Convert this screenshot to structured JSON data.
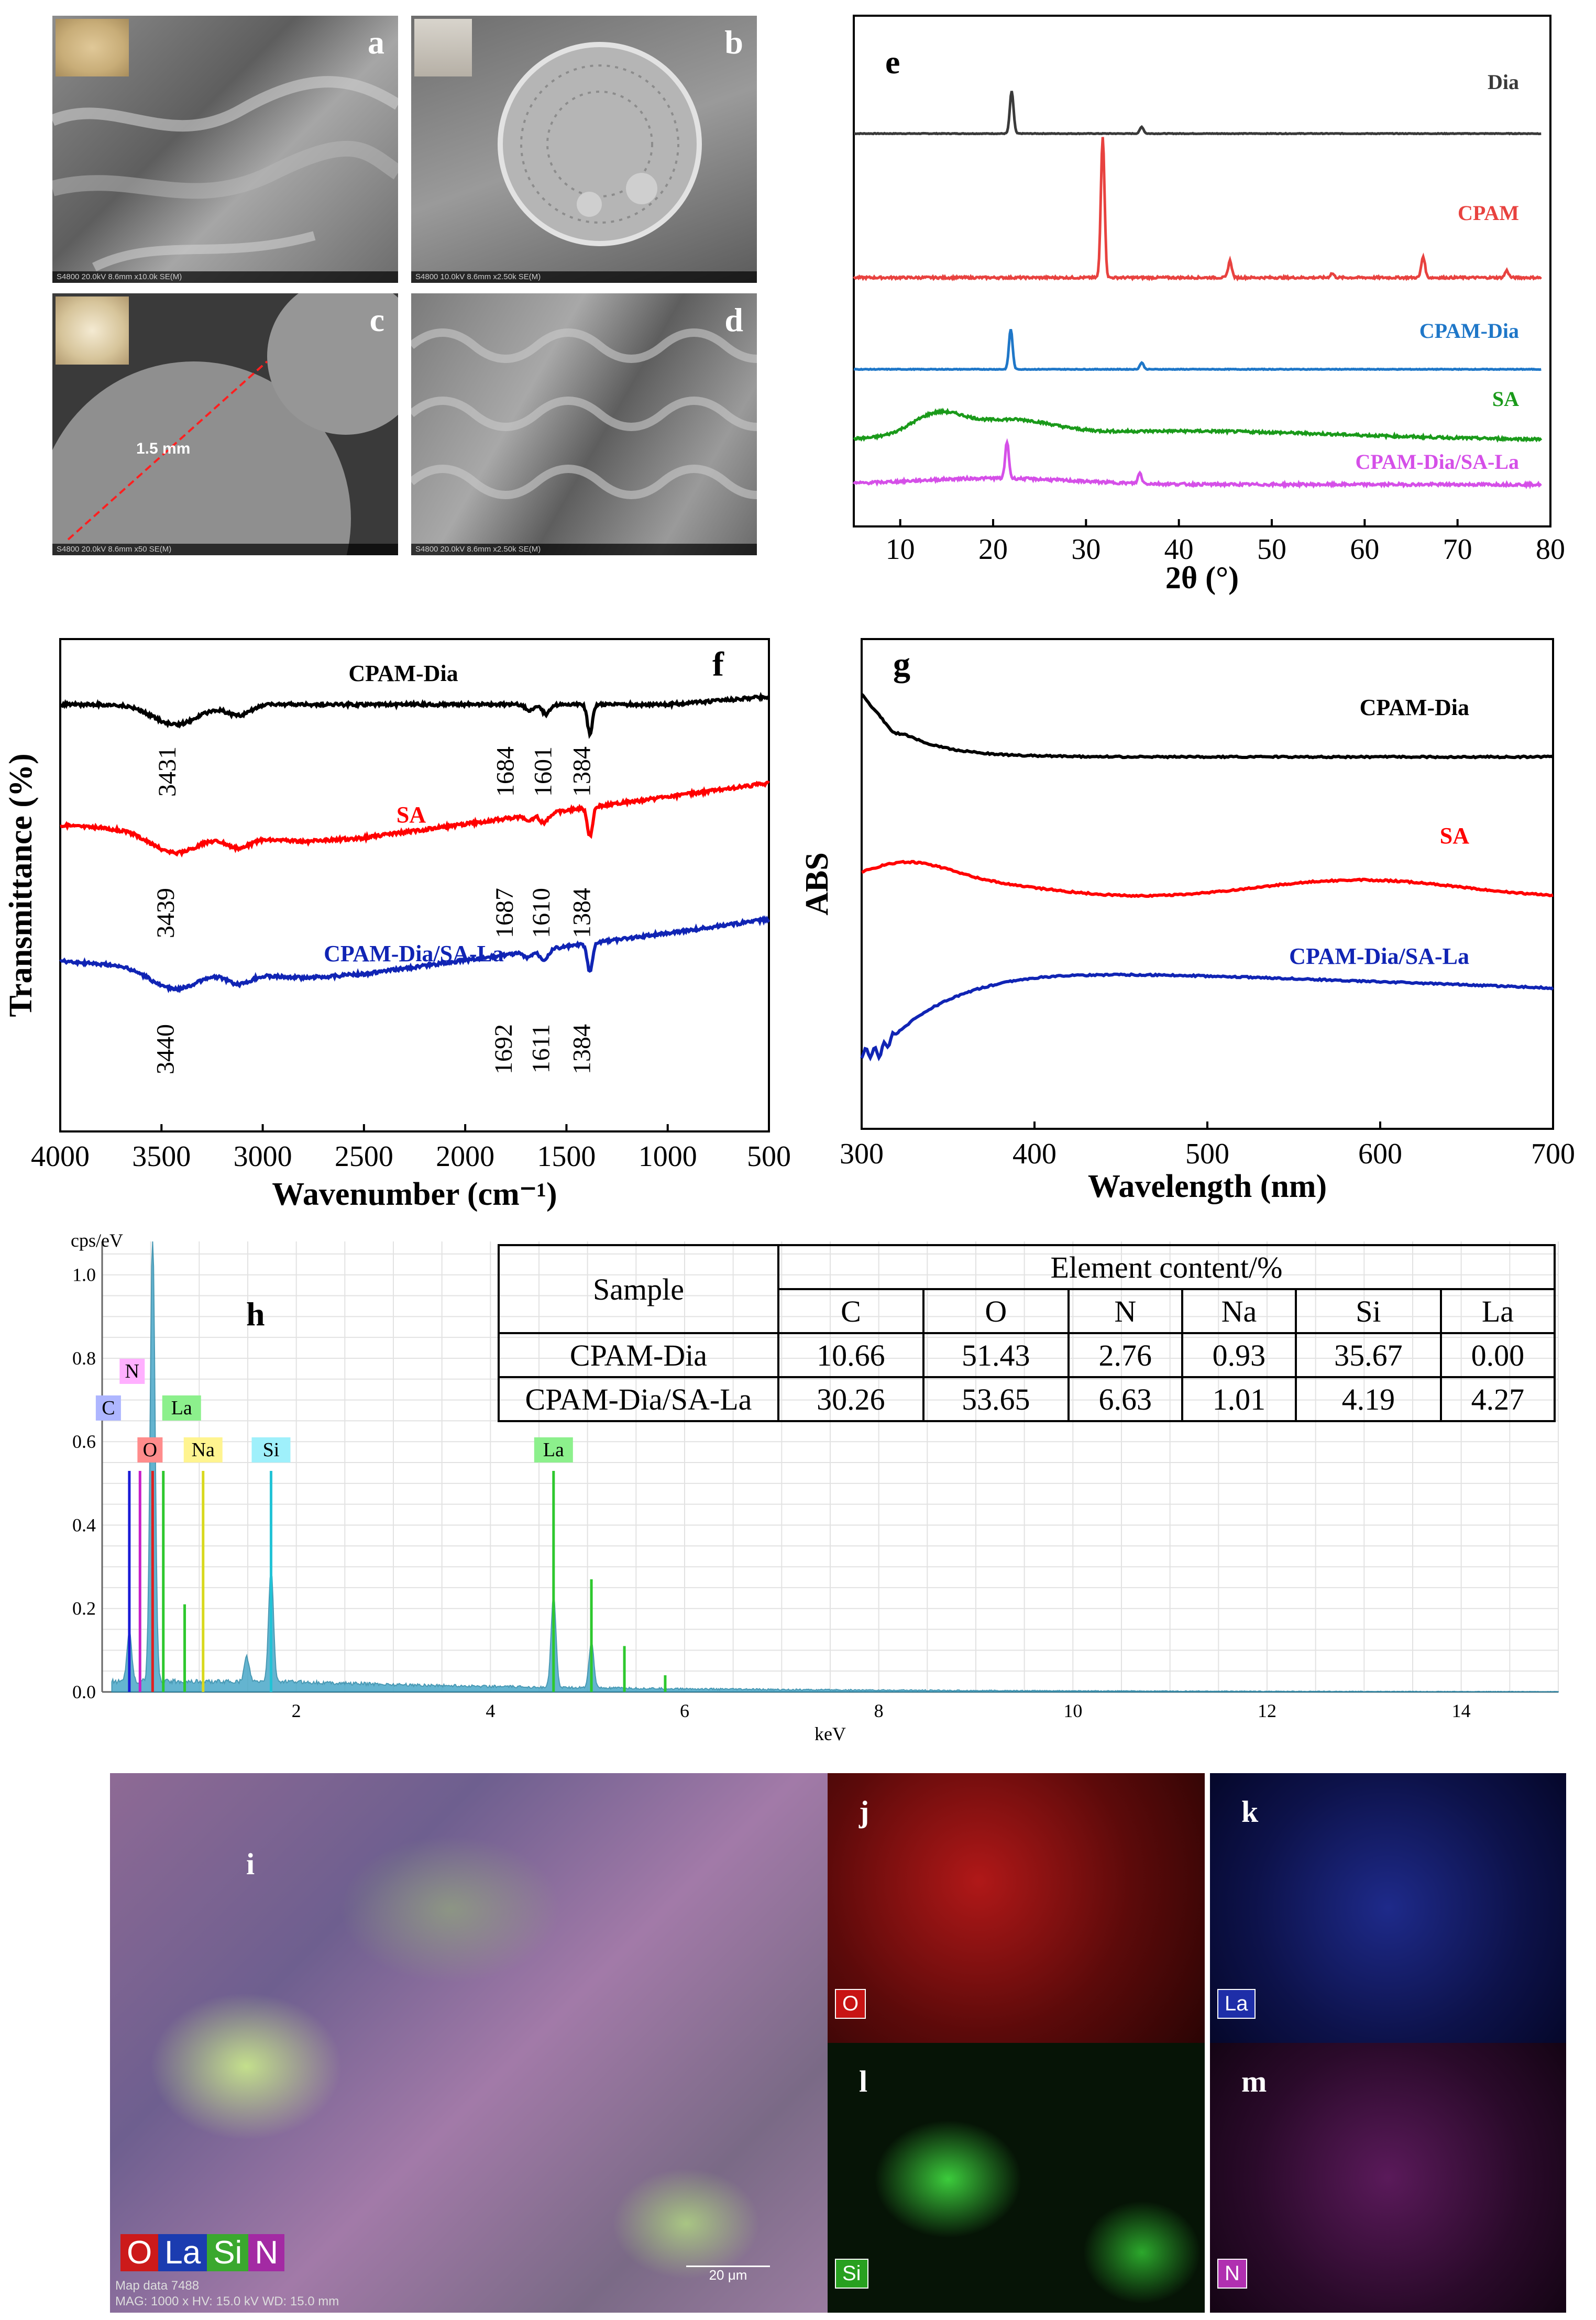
{
  "sem_panels": [
    {
      "label": "a",
      "footer": "S4800 20.0kV 8.6mm x10.0k SE(M)"
    },
    {
      "label": "b",
      "footer": "S4800 10.0kV 8.6mm x2.50k SE(M)"
    },
    {
      "label": "c",
      "footer": "S4800 20.0kV 8.6mm x50 SE(M)",
      "annotation": "1.5 mm"
    },
    {
      "label": "d",
      "footer": "S4800 20.0kV 8.6mm x2.50k SE(M)"
    }
  ],
  "chart_data": [
    {
      "id": "e",
      "type": "line",
      "label": "e",
      "xlabel": "2θ (°)",
      "xlim": [
        5,
        80
      ],
      "xticks": [
        10,
        20,
        30,
        40,
        50,
        60,
        70,
        80
      ],
      "series": [
        {
          "name": "Dia",
          "color": "#3a3a3a",
          "peaks": [
            [
              22,
              0.95
            ],
            [
              36,
              0.15
            ]
          ]
        },
        {
          "name": "CPAM",
          "color": "#e8423f",
          "peaks": [
            [
              31.8,
              1.0
            ],
            [
              45.5,
              0.12
            ],
            [
              56.5,
              0.03
            ],
            [
              66.3,
              0.15
            ],
            [
              75.3,
              0.05
            ]
          ]
        },
        {
          "name": "CPAM-Dia",
          "color": "#1f77c8",
          "peaks": [
            [
              21.9,
              0.9
            ],
            [
              36,
              0.15
            ]
          ]
        },
        {
          "name": "SA",
          "color": "#1a9a1a",
          "peaks": [
            [
              13.5,
              0.45
            ],
            [
              21.5,
              0.35
            ]
          ]
        },
        {
          "name": "CPAM-Dia/SA-La",
          "color": "#d54fe8",
          "peaks": [
            [
              21.5,
              0.7
            ],
            [
              35.8,
              0.2
            ]
          ]
        }
      ]
    },
    {
      "id": "f",
      "type": "line",
      "label": "f",
      "xlabel": "Wavenumber (cm⁻¹)",
      "ylabel": "Transmittance (%)",
      "xlim": [
        4000,
        500
      ],
      "xticks": [
        4000,
        3500,
        3000,
        2500,
        2000,
        1500,
        1000,
        500
      ],
      "series": [
        {
          "name": "CPAM-Dia",
          "color": "#000000",
          "bands": [
            "3431",
            "1684",
            "1601",
            "1384"
          ],
          "band_x": [
            3431,
            1684,
            1601,
            1384
          ]
        },
        {
          "name": "SA",
          "color": "#ff0000",
          "bands": [
            "3439",
            "1687",
            "1610",
            "1384"
          ],
          "band_x": [
            3439,
            1687,
            1610,
            1384
          ]
        },
        {
          "name": "CPAM-Dia/SA-La",
          "color": "#1024b4",
          "bands": [
            "3440",
            "1692",
            "1611",
            "1384"
          ],
          "band_x": [
            3440,
            1692,
            1611,
            1384
          ]
        }
      ]
    },
    {
      "id": "g",
      "type": "line",
      "label": "g",
      "xlabel": "Wavelength (nm)",
      "ylabel": "ABS",
      "xlim": [
        300,
        700
      ],
      "xticks": [
        300,
        400,
        500,
        600,
        700
      ],
      "series": [
        {
          "name": "CPAM-Dia",
          "color": "#000000"
        },
        {
          "name": "SA",
          "color": "#ff0000"
        },
        {
          "name": "CPAM-Dia/SA-La",
          "color": "#1024b4"
        }
      ]
    },
    {
      "id": "h",
      "type": "bar",
      "label": "h",
      "xlabel": "keV",
      "ylabel": "cps/eV",
      "xlim": [
        0,
        15
      ],
      "ylim": [
        0,
        1.08
      ],
      "xticks": [
        2,
        4,
        6,
        8,
        10,
        12,
        14
      ],
      "yticks": [
        "0.0",
        "0.2",
        "0.4",
        "0.6",
        "0.8",
        "1.0"
      ],
      "element_lines": [
        {
          "element": "C",
          "x": 0.28,
          "height": 0.53,
          "color": "#1b1bd6",
          "tag": "#aeb6ff"
        },
        {
          "element": "N",
          "x": 0.39,
          "height": 0.53,
          "color": "#c81ec8",
          "tag": "#ffb0ff"
        },
        {
          "element": "O",
          "x": 0.52,
          "height": 0.53,
          "color": "#e02020",
          "tag": "#ff8c8c"
        },
        {
          "element": "La",
          "x": 0.63,
          "height": 0.53,
          "color": "#2ec82e",
          "tag": "#8cf08c"
        },
        {
          "element": "Na",
          "x": 1.04,
          "height": 0.53,
          "color": "#d9d91e",
          "tag": "#fff490"
        },
        {
          "element": "Si",
          "x": 1.74,
          "height": 0.53,
          "color": "#22c3d6",
          "tag": "#9ff0fb"
        },
        {
          "element": "La",
          "x": 4.65,
          "height": 0.53,
          "color": "#2ec82e",
          "tag": "#8cf08c"
        }
      ],
      "spectrum_peaks": [
        [
          0.52,
          1.08
        ],
        [
          1.74,
          0.27
        ],
        [
          4.65,
          0.22
        ],
        [
          5.04,
          0.11
        ],
        [
          1.49,
          0.06
        ],
        [
          0.28,
          0.12
        ]
      ],
      "table": {
        "sample_header": "Sample",
        "group_header": "Element content/%",
        "columns": [
          "C",
          "O",
          "N",
          "Na",
          "Si",
          "La"
        ],
        "rows": [
          {
            "sample": "CPAM-Dia",
            "values": [
              "10.66",
              "51.43",
              "2.76",
              "0.93",
              "35.67",
              "0.00"
            ]
          },
          {
            "sample": "CPAM-Dia/SA-La",
            "values": [
              "30.26",
              "53.65",
              "6.63",
              "1.01",
              "4.19",
              "4.27"
            ]
          }
        ]
      }
    }
  ],
  "maps": {
    "main": {
      "label": "i",
      "legend": [
        {
          "text": "O",
          "color": "#cc1a1a"
        },
        {
          "text": "La",
          "color": "#1b3cb0"
        },
        {
          "text": "Si",
          "color": "#3aa82e"
        },
        {
          "text": "N",
          "color": "#a32aa3"
        }
      ],
      "footer_line1": "Map data 7488",
      "footer_line2": "MAG: 1000 x  HV: 15.0 kV  WD: 15.0 mm",
      "scale": "20 μm"
    },
    "tiles": [
      {
        "label": "j",
        "element": "O",
        "color": "#c81414",
        "tag": "#c81414"
      },
      {
        "label": "k",
        "element": "La",
        "color": "#1e2ea8",
        "tag": "#1e2ea8"
      },
      {
        "label": "l",
        "element": "Si",
        "color": "#28c028",
        "tag": "#28a020"
      },
      {
        "label": "m",
        "element": "N",
        "color": "#b030b0",
        "tag": "#b030b0"
      }
    ]
  }
}
